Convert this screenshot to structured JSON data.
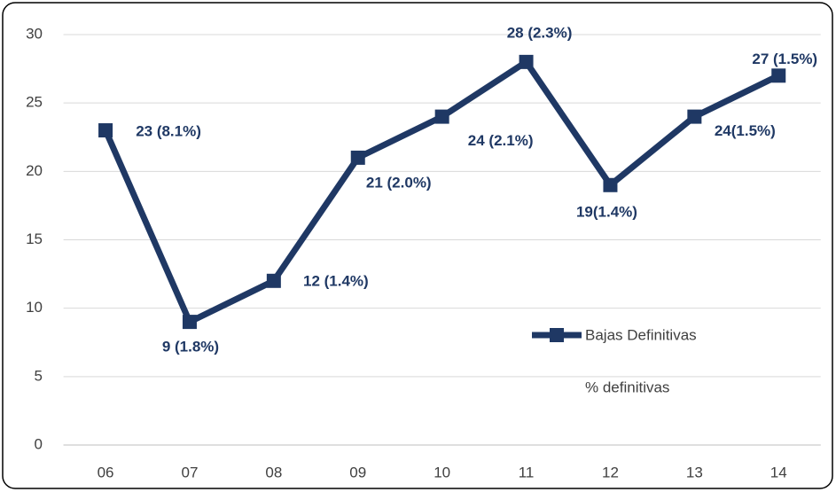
{
  "chart_data": {
    "type": "line",
    "categories": [
      "06",
      "07",
      "08",
      "09",
      "10",
      "11",
      "12",
      "13",
      "14"
    ],
    "series": [
      {
        "name": "Bajas Definitivas",
        "color": "#1f3864",
        "values": [
          23,
          9,
          12,
          21,
          24,
          28,
          19,
          24,
          27
        ],
        "value_labels": [
          "23 (8.1%)",
          "9 (1.8%)",
          "12 (1.4%)",
          "21 (2.0%)",
          "24  (2.1%)",
          "28 (2.3%)",
          "19(1.4%)",
          "24(1.5%)",
          "27 (1.5%)"
        ]
      },
      {
        "name": "% definitivas"
      }
    ],
    "ylim": [
      0,
      30
    ],
    "yticks": [
      0,
      5,
      10,
      15,
      20,
      25,
      30
    ],
    "grid": true
  }
}
